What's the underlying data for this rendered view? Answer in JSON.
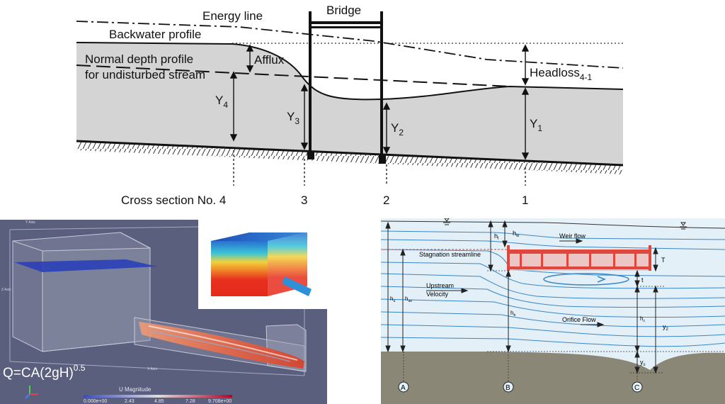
{
  "top_diagram": {
    "labels": {
      "energy_line": "Energy line",
      "bridge": "Bridge",
      "backwater_profile": "Backwater profile",
      "afflux": "Afflux",
      "normal_depth_1": "Normal depth profile",
      "normal_depth_2": "for undisturbed stream",
      "headloss": "Headloss",
      "headloss_sub": "4-1",
      "y4": "Y",
      "y4_sub": "4",
      "y3": "Y",
      "y3_sub": "3",
      "y2": "Y",
      "y2_sub": "2",
      "y1": "Y",
      "y1_sub": "1",
      "cross_section": "Cross section No. 4",
      "cs3": "3",
      "cs2": "2",
      "cs1": "1"
    },
    "colors": {
      "water": "#d4d4d4",
      "line": "#111111"
    }
  },
  "cfd_panel": {
    "formula_base": "Q=CA(2gH)",
    "formula_exp": "0.5",
    "legend_title": "U Magnitude",
    "legend_ticks": [
      "0.000e+00",
      "2.43",
      "4.85",
      "7.28",
      "9.708e+00"
    ],
    "axis_labels": {
      "y": "Y Axis",
      "z": "Z Axis",
      "x": "X Axis"
    },
    "colors": {
      "background": "#5b5f7e",
      "plane": "#2b3fb8"
    }
  },
  "bridge_flow_diagram": {
    "labels": {
      "h_l": "h",
      "h_l_sub": "l",
      "h_w": "h",
      "h_w_sub": "w",
      "weir_flow": "Weir flow",
      "stagnation": "Stagnation streamline",
      "T": "T",
      "t": "t",
      "upstream_1": "Upstream",
      "upstream_2": "Velocity",
      "h_u": "h",
      "h_u_sub": "u",
      "h_ue": "h",
      "h_ue_sub": "ue",
      "h_b": "h",
      "h_b_sub": "b",
      "orifice_flow": "Orifice Flow",
      "h_c": "h",
      "h_c_sub": "c",
      "y2": "y",
      "y2_sub": "2",
      "y_s": "y",
      "y_s_sub": "s",
      "sec_a": "A",
      "sec_b": "B",
      "sec_c": "C"
    },
    "colors": {
      "water": "#e3f0f8",
      "ground": "#8b8776",
      "deck": "#e0463c",
      "streamline": "#3b86c4"
    }
  }
}
